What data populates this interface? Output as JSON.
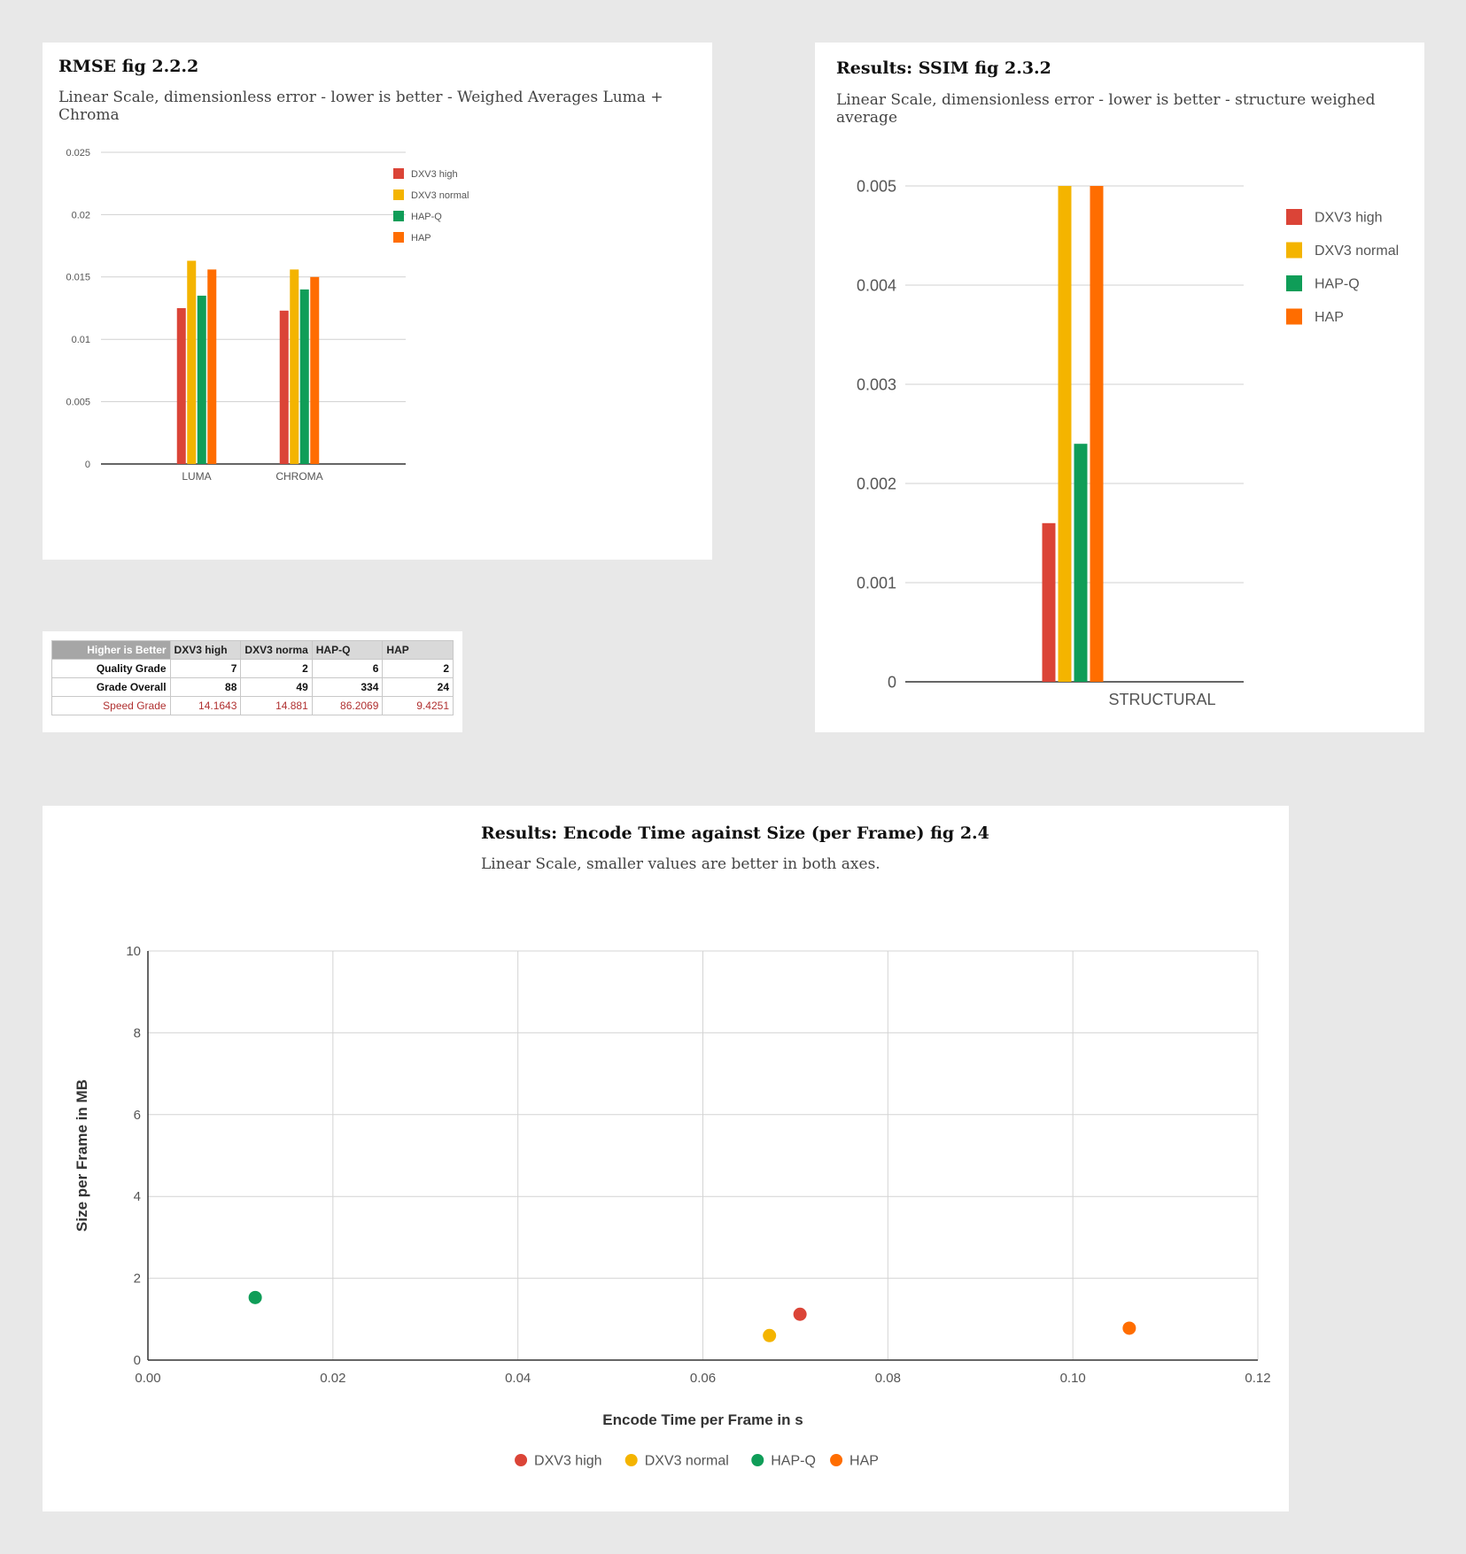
{
  "colors": {
    "DXV3 high": "#db4437",
    "DXV3 normal": "#f4b400",
    "HAP-Q": "#0f9d58",
    "HAP": "#ff6d00"
  },
  "rmse": {
    "title": "RMSE fig 2.2.2",
    "subtitle": "Linear Scale, dimensionless error - lower is better - Weighed Averages Luma + Chroma"
  },
  "ssim": {
    "title": "Results: SSIM fig 2.3.2",
    "subtitle": "Linear Scale, dimensionless error - lower is better - structure weighed average"
  },
  "scatter": {
    "title": "Results: Encode Time against Size (per Frame) fig 2.4",
    "subtitle": "Linear Scale, smaller values are better in both axes."
  },
  "grade_table": {
    "headers": [
      "Higher is Better",
      "DXV3 high",
      "DXV3 norma",
      "HAP-Q",
      "HAP"
    ],
    "rows": [
      {
        "label": "Quality Grade",
        "values": [
          "7",
          "2",
          "6",
          "2"
        ]
      },
      {
        "label": "Grade Overall",
        "values": [
          "88",
          "49",
          "334",
          "24"
        ]
      },
      {
        "label": "Speed Grade",
        "values": [
          "14.1643",
          "14.881",
          "86.2069",
          "9.4251"
        ]
      }
    ]
  },
  "chart_data": [
    {
      "type": "bar",
      "title": "RMSE fig 2.2.2",
      "categories": [
        "LUMA",
        "CHROMA"
      ],
      "series": [
        {
          "name": "DXV3 high",
          "values": [
            0.0125,
            0.0123
          ]
        },
        {
          "name": "DXV3 normal",
          "values": [
            0.0163,
            0.0156
          ]
        },
        {
          "name": "HAP-Q",
          "values": [
            0.0135,
            0.014
          ]
        },
        {
          "name": "HAP",
          "values": [
            0.0156,
            0.015
          ]
        }
      ],
      "yticks": [
        "0",
        "0.005",
        "0.01",
        "0.015",
        "0.02",
        "0.025"
      ],
      "ylim": [
        0,
        0.025
      ],
      "legend": "right",
      "grid": true
    },
    {
      "type": "bar",
      "title": "Results: SSIM fig 2.3.2",
      "categories": [
        "STRUCTURAL"
      ],
      "series": [
        {
          "name": "DXV3 high",
          "values": [
            0.0016
          ]
        },
        {
          "name": "DXV3 normal",
          "values": [
            0.005
          ]
        },
        {
          "name": "HAP-Q",
          "values": [
            0.0024
          ]
        },
        {
          "name": "HAP",
          "values": [
            0.005
          ]
        }
      ],
      "yticks": [
        "0",
        "0.001",
        "0.002",
        "0.003",
        "0.004",
        "0.005"
      ],
      "ylim": [
        0,
        0.005
      ],
      "legend": "right",
      "grid": true
    },
    {
      "type": "scatter",
      "title": "Results: Encode Time against Size (per Frame) fig 2.4",
      "xlabel": "Encode Time per Frame in s",
      "ylabel": "Size per Frame in MB",
      "xticks": [
        "0.00",
        "0.02",
        "0.04",
        "0.06",
        "0.08",
        "0.10",
        "0.12"
      ],
      "yticks": [
        "0",
        "2",
        "4",
        "6",
        "8",
        "10"
      ],
      "xlim": [
        0,
        0.12
      ],
      "ylim": [
        0,
        10
      ],
      "series": [
        {
          "name": "DXV3 high",
          "x": [
            0.0705
          ],
          "y": [
            1.12
          ]
        },
        {
          "name": "DXV3 normal",
          "x": [
            0.0672
          ],
          "y": [
            0.6
          ]
        },
        {
          "name": "HAP-Q",
          "x": [
            0.0116
          ],
          "y": [
            1.53
          ]
        },
        {
          "name": "HAP",
          "x": [
            0.1061
          ],
          "y": [
            0.78
          ]
        }
      ],
      "legend": "bottom",
      "grid": true
    }
  ]
}
